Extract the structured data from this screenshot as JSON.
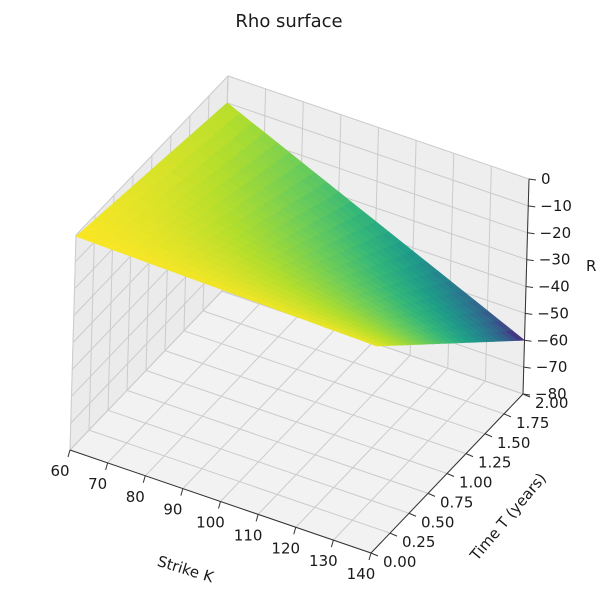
{
  "chart_data": {
    "type": "surface",
    "title": "Rho surface",
    "xlabel": "Strike K",
    "ylabel": "Time T (years)",
    "zlabel": "R",
    "colormap": "viridis",
    "xlim": [
      60,
      140
    ],
    "ylim": [
      0,
      2
    ],
    "zlim": [
      -80,
      0
    ],
    "x_ticks": [
      "60",
      "70",
      "80",
      "90",
      "100",
      "110",
      "120",
      "130",
      "140"
    ],
    "y_ticks": [
      "0.00",
      "0.25",
      "0.50",
      "0.75",
      "1.00",
      "1.25",
      "1.50",
      "1.75",
      "2.00"
    ],
    "z_ticks": [
      "0",
      "−10",
      "−20",
      "−30",
      "−40",
      "−50",
      "−60",
      "−70",
      "−80"
    ],
    "grid": true,
    "corner_values": [
      {
        "K": 60,
        "T": 0,
        "R": -0.5
      },
      {
        "K": 140,
        "T": 0,
        "R": -3
      },
      {
        "K": 60,
        "T": 2,
        "R": -10
      },
      {
        "K": 140,
        "T": 2,
        "R": -60
      }
    ]
  }
}
